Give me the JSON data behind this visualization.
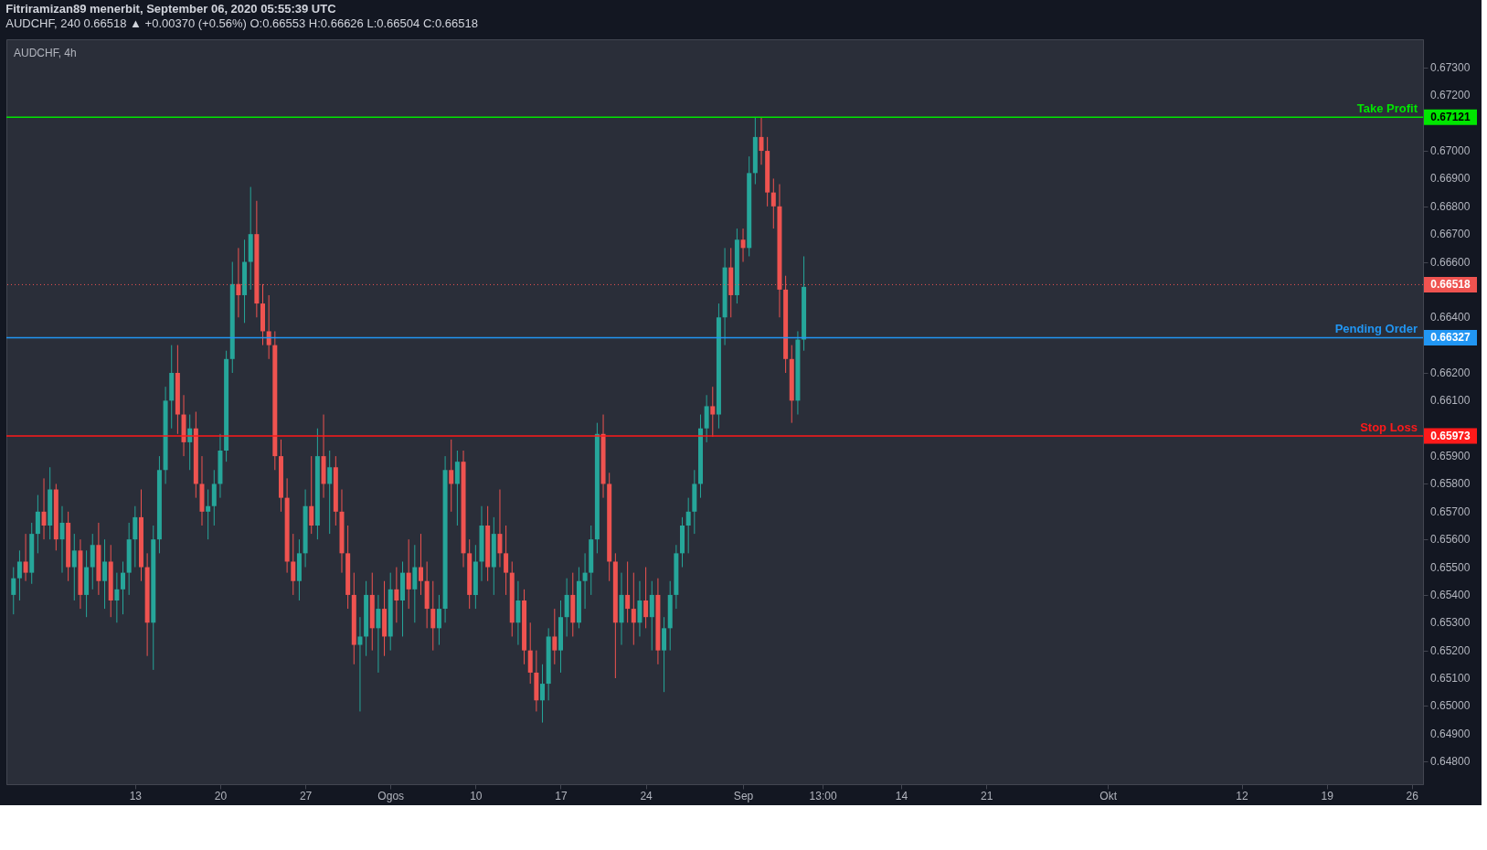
{
  "chart_data": {
    "type": "candlestick",
    "title": "Fitriramizan89 menerbit, September 06, 2020 05:55:39 UTC",
    "subtitle": "AUDCHF, 240  0.66518 ▲ +0.00370 (+0.56%)  O:0.66553  H:0.66626  L:0.66504  C:0.66518",
    "annotations": [
      "AUDCHF, 4h",
      "0.67121",
      "0.66518",
      "0.66327",
      "0.65973"
    ],
    "x": [
      "2020-07-03T00:00",
      "2020-07-03T12:00",
      "2020-07-04T00:00",
      "2020-07-04T12:00",
      "2020-07-05T00:00",
      "2020-07-05T12:00",
      "2020-07-06T00:00",
      "2020-07-06T12:00",
      "2020-07-07T00:00",
      "2020-07-07T12:00",
      "2020-07-08T00:00",
      "2020-07-08T12:00",
      "2020-07-09T00:00",
      "2020-07-09T12:00",
      "2020-07-10T00:00",
      "2020-07-10T12:00",
      "2020-07-11T00:00",
      "2020-07-11T12:00",
      "2020-07-12T00:00",
      "2020-07-12T12:00",
      "2020-07-13T00:00",
      "2020-07-13T12:00",
      "2020-07-14T00:00",
      "2020-07-14T12:00",
      "2020-07-15T00:00",
      "2020-07-15T12:00",
      "2020-07-16T00:00",
      "2020-07-16T12:00",
      "2020-07-17T00:00",
      "2020-07-17T12:00",
      "2020-07-18T00:00",
      "2020-07-18T12:00",
      "2020-07-19T00:00",
      "2020-07-19T12:00",
      "2020-07-20T00:00",
      "2020-07-20T12:00",
      "2020-07-21T00:00",
      "2020-07-21T12:00",
      "2020-07-22T00:00",
      "2020-07-22T12:00",
      "2020-07-23T00:00",
      "2020-07-23T12:00",
      "2020-07-24T00:00",
      "2020-07-24T12:00",
      "2020-07-25T00:00",
      "2020-07-25T12:00",
      "2020-07-26T00:00",
      "2020-07-26T12:00",
      "2020-07-27T00:00",
      "2020-07-27T12:00",
      "2020-07-28T00:00",
      "2020-07-28T12:00",
      "2020-07-29T00:00",
      "2020-07-29T12:00",
      "2020-07-30T00:00",
      "2020-07-30T12:00",
      "2020-07-31T00:00",
      "2020-07-31T12:00",
      "2020-08-01T00:00",
      "2020-08-01T12:00",
      "2020-08-02T00:00",
      "2020-08-02T12:00",
      "2020-08-03T00:00",
      "2020-08-03T12:00",
      "2020-08-04T00:00",
      "2020-08-04T12:00",
      "2020-08-05T00:00",
      "2020-08-05T12:00",
      "2020-08-06T00:00",
      "2020-08-06T12:00",
      "2020-08-07T00:00",
      "2020-08-07T12:00",
      "2020-08-08T00:00",
      "2020-08-08T12:00",
      "2020-08-09T00:00",
      "2020-08-09T12:00",
      "2020-08-10T00:00",
      "2020-08-10T12:00",
      "2020-08-11T00:00",
      "2020-08-11T12:00",
      "2020-08-12T00:00",
      "2020-08-12T12:00",
      "2020-08-13T00:00",
      "2020-08-13T12:00",
      "2020-08-14T00:00",
      "2020-08-14T12:00",
      "2020-08-15T00:00",
      "2020-08-15T12:00",
      "2020-08-16T00:00",
      "2020-08-16T12:00",
      "2020-08-17T00:00",
      "2020-08-17T12:00",
      "2020-08-18T00:00",
      "2020-08-18T12:00",
      "2020-08-19T00:00",
      "2020-08-19T12:00",
      "2020-08-20T00:00",
      "2020-08-20T12:00",
      "2020-08-21T00:00",
      "2020-08-21T12:00",
      "2020-08-22T00:00",
      "2020-08-22T12:00",
      "2020-08-23T00:00",
      "2020-08-23T12:00",
      "2020-08-24T00:00",
      "2020-08-24T12:00",
      "2020-08-25T00:00",
      "2020-08-25T12:00",
      "2020-08-26T00:00",
      "2020-08-26T12:00",
      "2020-08-27T00:00",
      "2020-08-27T12:00",
      "2020-08-28T00:00",
      "2020-08-28T12:00",
      "2020-08-29T00:00",
      "2020-08-29T12:00",
      "2020-08-30T00:00",
      "2020-08-30T12:00",
      "2020-08-31T00:00",
      "2020-08-31T12:00",
      "2020-09-01T00:00",
      "2020-09-01T12:00",
      "2020-09-02T00:00",
      "2020-09-02T12:00",
      "2020-09-03T00:00",
      "2020-09-03T12:00",
      "2020-09-04T00:00",
      "2020-09-04T12:00",
      "2020-09-05T00:00",
      "2020-09-05T12:00",
      "2020-09-06T00:00"
    ],
    "ohlc": [
      [
        0.654,
        0.655,
        0.6533,
        0.6546
      ],
      [
        0.6546,
        0.6556,
        0.6538,
        0.6552
      ],
      [
        0.6552,
        0.6562,
        0.6545,
        0.6548
      ],
      [
        0.6548,
        0.6566,
        0.6544,
        0.6562
      ],
      [
        0.6562,
        0.6576,
        0.6555,
        0.657
      ],
      [
        0.657,
        0.6582,
        0.656,
        0.6565
      ],
      [
        0.6565,
        0.6586,
        0.656,
        0.6578
      ],
      [
        0.6578,
        0.658,
        0.6556,
        0.656
      ],
      [
        0.656,
        0.6572,
        0.6548,
        0.6566
      ],
      [
        0.6566,
        0.657,
        0.6545,
        0.655
      ],
      [
        0.655,
        0.6562,
        0.6538,
        0.6556
      ],
      [
        0.6556,
        0.656,
        0.6535,
        0.654
      ],
      [
        0.654,
        0.6556,
        0.6532,
        0.655
      ],
      [
        0.655,
        0.6562,
        0.6542,
        0.6558
      ],
      [
        0.6558,
        0.6566,
        0.654,
        0.6545
      ],
      [
        0.6545,
        0.656,
        0.6535,
        0.6552
      ],
      [
        0.6552,
        0.6558,
        0.6532,
        0.6538
      ],
      [
        0.6538,
        0.6548,
        0.653,
        0.6542
      ],
      [
        0.6542,
        0.6552,
        0.6533,
        0.6548
      ],
      [
        0.6548,
        0.6566,
        0.654,
        0.656
      ],
      [
        0.656,
        0.6572,
        0.655,
        0.6568
      ],
      [
        0.6568,
        0.6578,
        0.6545,
        0.655
      ],
      [
        0.655,
        0.6555,
        0.6518,
        0.653
      ],
      [
        0.653,
        0.6565,
        0.6513,
        0.656
      ],
      [
        0.656,
        0.659,
        0.6555,
        0.6585
      ],
      [
        0.6585,
        0.6615,
        0.658,
        0.661
      ],
      [
        0.661,
        0.663,
        0.66,
        0.662
      ],
      [
        0.662,
        0.663,
        0.6598,
        0.6605
      ],
      [
        0.6605,
        0.6612,
        0.659,
        0.6595
      ],
      [
        0.6595,
        0.6605,
        0.6585,
        0.66
      ],
      [
        0.66,
        0.6606,
        0.6575,
        0.658
      ],
      [
        0.658,
        0.659,
        0.6565,
        0.657
      ],
      [
        0.657,
        0.6578,
        0.656,
        0.6572
      ],
      [
        0.6572,
        0.6585,
        0.6565,
        0.658
      ],
      [
        0.658,
        0.6598,
        0.6575,
        0.6592
      ],
      [
        0.6592,
        0.6628,
        0.6588,
        0.6625
      ],
      [
        0.6625,
        0.666,
        0.662,
        0.6652
      ],
      [
        0.6652,
        0.6665,
        0.664,
        0.6648
      ],
      [
        0.6648,
        0.6668,
        0.6638,
        0.666
      ],
      [
        0.666,
        0.6687,
        0.665,
        0.667
      ],
      [
        0.667,
        0.6682,
        0.664,
        0.6645
      ],
      [
        0.6645,
        0.6652,
        0.663,
        0.6635
      ],
      [
        0.6635,
        0.6648,
        0.6625,
        0.663
      ],
      [
        0.663,
        0.6635,
        0.6585,
        0.659
      ],
      [
        0.659,
        0.6596,
        0.657,
        0.6575
      ],
      [
        0.6575,
        0.6582,
        0.6548,
        0.6552
      ],
      [
        0.6552,
        0.6562,
        0.654,
        0.6545
      ],
      [
        0.6545,
        0.656,
        0.6538,
        0.6555
      ],
      [
        0.6555,
        0.6578,
        0.655,
        0.6572
      ],
      [
        0.6572,
        0.659,
        0.6562,
        0.6565
      ],
      [
        0.6565,
        0.66,
        0.656,
        0.659
      ],
      [
        0.659,
        0.6605,
        0.6575,
        0.658
      ],
      [
        0.658,
        0.6592,
        0.6562,
        0.6586
      ],
      [
        0.6586,
        0.659,
        0.6565,
        0.657
      ],
      [
        0.657,
        0.6578,
        0.6548,
        0.6555
      ],
      [
        0.6555,
        0.6565,
        0.6535,
        0.654
      ],
      [
        0.654,
        0.6548,
        0.6515,
        0.6522
      ],
      [
        0.6522,
        0.6532,
        0.6498,
        0.6525
      ],
      [
        0.6525,
        0.6545,
        0.6518,
        0.654
      ],
      [
        0.654,
        0.6548,
        0.652,
        0.6528
      ],
      [
        0.6528,
        0.654,
        0.6512,
        0.6535
      ],
      [
        0.6535,
        0.6545,
        0.6518,
        0.6525
      ],
      [
        0.6525,
        0.6548,
        0.652,
        0.6542
      ],
      [
        0.6542,
        0.655,
        0.653,
        0.6538
      ],
      [
        0.6538,
        0.6552,
        0.6525,
        0.6548
      ],
      [
        0.6548,
        0.656,
        0.6535,
        0.6542
      ],
      [
        0.6542,
        0.6558,
        0.653,
        0.655
      ],
      [
        0.655,
        0.6562,
        0.654,
        0.6545
      ],
      [
        0.6545,
        0.6552,
        0.6528,
        0.6535
      ],
      [
        0.6535,
        0.6545,
        0.652,
        0.6528
      ],
      [
        0.6528,
        0.654,
        0.6522,
        0.6535
      ],
      [
        0.6535,
        0.659,
        0.653,
        0.6585
      ],
      [
        0.6585,
        0.6596,
        0.657,
        0.658
      ],
      [
        0.658,
        0.6592,
        0.6565,
        0.6588
      ],
      [
        0.6588,
        0.6592,
        0.655,
        0.6555
      ],
      [
        0.6555,
        0.656,
        0.6535,
        0.654
      ],
      [
        0.654,
        0.6558,
        0.6535,
        0.6552
      ],
      [
        0.6552,
        0.6572,
        0.6545,
        0.6565
      ],
      [
        0.6565,
        0.6572,
        0.6545,
        0.655
      ],
      [
        0.655,
        0.6568,
        0.654,
        0.6562
      ],
      [
        0.6562,
        0.6578,
        0.655,
        0.6555
      ],
      [
        0.6555,
        0.6565,
        0.654,
        0.6548
      ],
      [
        0.6548,
        0.6552,
        0.6525,
        0.653
      ],
      [
        0.653,
        0.6545,
        0.6522,
        0.6538
      ],
      [
        0.6538,
        0.6542,
        0.6515,
        0.652
      ],
      [
        0.652,
        0.653,
        0.6508,
        0.6512
      ],
      [
        0.6512,
        0.652,
        0.6498,
        0.6502
      ],
      [
        0.6502,
        0.6515,
        0.6494,
        0.6508
      ],
      [
        0.6508,
        0.6528,
        0.6502,
        0.6525
      ],
      [
        0.6525,
        0.6535,
        0.6515,
        0.652
      ],
      [
        0.652,
        0.6538,
        0.6512,
        0.6532
      ],
      [
        0.6532,
        0.6546,
        0.6525,
        0.654
      ],
      [
        0.654,
        0.6548,
        0.6525,
        0.653
      ],
      [
        0.653,
        0.655,
        0.6528,
        0.6545
      ],
      [
        0.6545,
        0.6555,
        0.6535,
        0.6548
      ],
      [
        0.6548,
        0.6565,
        0.654,
        0.656
      ],
      [
        0.656,
        0.6602,
        0.6555,
        0.6598
      ],
      [
        0.6598,
        0.6605,
        0.6575,
        0.658
      ],
      [
        0.658,
        0.6584,
        0.6545,
        0.6552
      ],
      [
        0.6552,
        0.6555,
        0.651,
        0.653
      ],
      [
        0.653,
        0.6548,
        0.6522,
        0.654
      ],
      [
        0.654,
        0.6552,
        0.653,
        0.6535
      ],
      [
        0.6535,
        0.6548,
        0.6522,
        0.653
      ],
      [
        0.653,
        0.6545,
        0.6525,
        0.6538
      ],
      [
        0.6538,
        0.655,
        0.6528,
        0.6532
      ],
      [
        0.6532,
        0.6545,
        0.652,
        0.654
      ],
      [
        0.654,
        0.6546,
        0.6515,
        0.652
      ],
      [
        0.652,
        0.6532,
        0.6505,
        0.6528
      ],
      [
        0.6528,
        0.6545,
        0.652,
        0.654
      ],
      [
        0.654,
        0.6558,
        0.6535,
        0.6555
      ],
      [
        0.6555,
        0.6568,
        0.655,
        0.6565
      ],
      [
        0.6565,
        0.6575,
        0.6555,
        0.657
      ],
      [
        0.657,
        0.6585,
        0.6562,
        0.658
      ],
      [
        0.658,
        0.6605,
        0.6575,
        0.66
      ],
      [
        0.66,
        0.6612,
        0.6595,
        0.6608
      ],
      [
        0.6608,
        0.6615,
        0.6597,
        0.6605
      ],
      [
        0.6605,
        0.6645,
        0.66,
        0.664
      ],
      [
        0.664,
        0.6665,
        0.663,
        0.6658
      ],
      [
        0.6658,
        0.6665,
        0.664,
        0.6648
      ],
      [
        0.6648,
        0.6672,
        0.6645,
        0.6668
      ],
      [
        0.6668,
        0.6672,
        0.666,
        0.6665
      ],
      [
        0.6665,
        0.6698,
        0.6662,
        0.6692
      ],
      [
        0.6692,
        0.6712,
        0.6688,
        0.6705
      ],
      [
        0.6705,
        0.6712,
        0.6695,
        0.67
      ],
      [
        0.67,
        0.6705,
        0.668,
        0.6685
      ],
      [
        0.6685,
        0.669,
        0.6672,
        0.668
      ],
      [
        0.668,
        0.6688,
        0.664,
        0.665
      ],
      [
        0.665,
        0.6655,
        0.662,
        0.6625
      ],
      [
        0.6625,
        0.663,
        0.6602,
        0.661
      ],
      [
        0.661,
        0.6635,
        0.6605,
        0.6632
      ],
      [
        0.6632,
        0.6662,
        0.6628,
        0.6651
      ]
    ],
    "xlim": [
      "2020-07-02T19:00",
      "2020-10-26T13:00"
    ],
    "xticks": [
      {
        "value": "2020-07-13",
        "label": "13"
      },
      {
        "value": "2020-07-20",
        "label": "20"
      },
      {
        "value": "2020-07-27",
        "label": "27"
      },
      {
        "value": "2020-08-03",
        "label": "Ogos"
      },
      {
        "value": "2020-08-10",
        "label": "10"
      },
      {
        "value": "2020-08-17",
        "label": "17"
      },
      {
        "value": "2020-08-24",
        "label": "24"
      },
      {
        "value": "2020-09-01",
        "label": "Sep"
      },
      {
        "value": "2020-09-07T13:00",
        "label": "13:00"
      },
      {
        "value": "2020-09-14",
        "label": "14"
      },
      {
        "value": "2020-09-21",
        "label": "21"
      },
      {
        "value": "2020-10-01",
        "label": "Okt"
      },
      {
        "value": "2020-10-12",
        "label": "12"
      },
      {
        "value": "2020-10-19",
        "label": "19"
      },
      {
        "value": "2020-10-26",
        "label": "26"
      }
    ],
    "ylim": [
      0.64718,
      0.67402
    ],
    "yticks": [
      {
        "value": 0.648,
        "label": "0.64800"
      },
      {
        "value": 0.649,
        "label": "0.64900"
      },
      {
        "value": 0.65,
        "label": "0.65000"
      },
      {
        "value": 0.651,
        "label": "0.65100"
      },
      {
        "value": 0.652,
        "label": "0.65200"
      },
      {
        "value": 0.653,
        "label": "0.65300"
      },
      {
        "value": 0.654,
        "label": "0.65400"
      },
      {
        "value": 0.655,
        "label": "0.65500"
      },
      {
        "value": 0.656,
        "label": "0.65600"
      },
      {
        "value": 0.657,
        "label": "0.65700"
      },
      {
        "value": 0.658,
        "label": "0.65800"
      },
      {
        "value": 0.659,
        "label": "0.65900"
      },
      {
        "value": 0.66,
        "label": null
      },
      {
        "value": 0.661,
        "label": "0.66100"
      },
      {
        "value": 0.662,
        "label": "0.66200"
      },
      {
        "value": 0.664,
        "label": "0.66400"
      },
      {
        "value": 0.666,
        "label": "0.66600"
      },
      {
        "value": 0.667,
        "label": "0.66700"
      },
      {
        "value": 0.668,
        "label": "0.66800"
      },
      {
        "value": 0.669,
        "label": "0.66900"
      },
      {
        "value": 0.67,
        "label": "0.67000"
      },
      {
        "value": 0.672,
        "label": "0.67200"
      },
      {
        "value": 0.673,
        "label": "0.67300"
      }
    ],
    "ref_lines": [
      {
        "axis": "y",
        "value": 0.67121,
        "label": "Take Profit",
        "color": "#00e600"
      },
      {
        "axis": "y",
        "value": 0.66518,
        "color": "#ef5350",
        "line_style": "dotted"
      },
      {
        "axis": "y",
        "value": 0.66327,
        "label": "Pending Order",
        "color": "#2196f3"
      },
      {
        "axis": "y",
        "value": 0.65973,
        "label": "Stop Loss",
        "color": "#ff1a1a"
      }
    ]
  }
}
